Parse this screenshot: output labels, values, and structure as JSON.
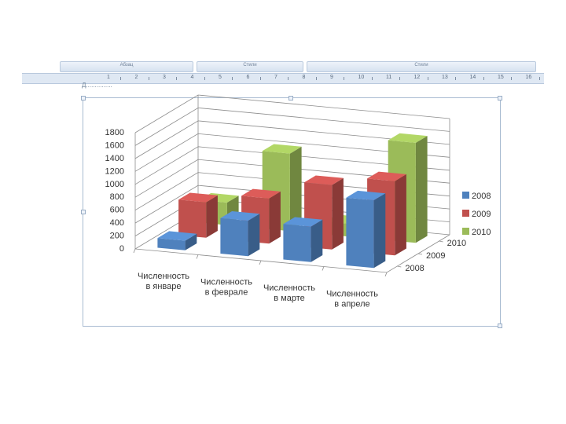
{
  "ribbon": {
    "labels": [
      "Абзац",
      "Стили",
      "Стили"
    ]
  },
  "ruler": {
    "numbers": [
      "1",
      "2",
      "3",
      "4",
      "5",
      "6",
      "7",
      "8",
      "9",
      "10",
      "11",
      "12",
      "13",
      "14",
      "15",
      "16"
    ]
  },
  "chart_data": {
    "type": "bar",
    "categories": [
      "Численность в январе",
      "Численность в феврале",
      "Численность в марте",
      "Численность в апреле"
    ],
    "category_lines": [
      [
        "Численность",
        "в январе"
      ],
      [
        "Численность",
        "в феврале"
      ],
      [
        "Численность",
        "в марте"
      ],
      [
        "Численность",
        "в апреле"
      ]
    ],
    "series": [
      {
        "name": "2008",
        "values": [
          150,
          550,
          550,
          1050
        ]
      },
      {
        "name": "2009",
        "values": [
          550,
          700,
          1000,
          1150
        ]
      },
      {
        "name": "2010",
        "values": [
          350,
          1200,
          200,
          1550
        ]
      }
    ],
    "ylim": [
      0,
      1800
    ],
    "yticks": [
      0,
      200,
      400,
      600,
      800,
      1000,
      1200,
      1400,
      1600,
      1800
    ],
    "depth_labels": [
      "2010",
      "2009",
      "2008"
    ],
    "legend": [
      "2008",
      "2009",
      "2010"
    ],
    "legend_position": "right",
    "grid": true,
    "colors": {
      "2008": "#4f81bd",
      "2009": "#c0504d",
      "2010": "#9bbb59"
    }
  }
}
